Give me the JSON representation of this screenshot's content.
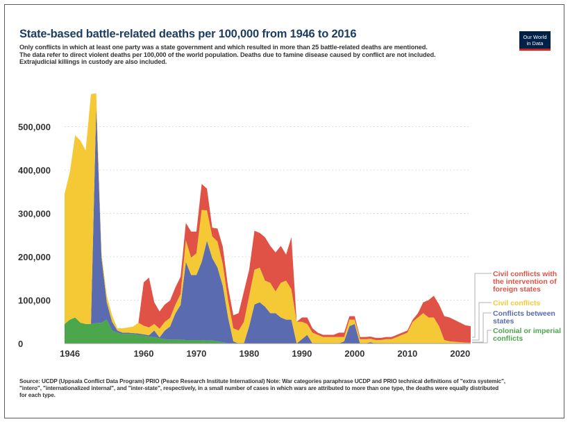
{
  "header": {
    "title": "State-based battle-related deaths per 100,000 from 1946 to 2016",
    "subtitle_lines": [
      "Only conflicts in which at least one party was a state government and which resulted in more than 25 battle-related deaths are mentioned.",
      "The data refer to direct violent deaths per 100,000 of the world population. Deaths due to famine disease caused by conflict are not included.",
      "Extrajudicial killings in custody are also included."
    ]
  },
  "logo": {
    "line1": "Our World",
    "line2": "in Data"
  },
  "colors": {
    "colonial": "#4ca64c",
    "interstate": "#5a6bb0",
    "civil": "#f4c935",
    "internationalized": "#e05246",
    "text": "#333333",
    "title": "#1d3d63",
    "grid": "#dddddd"
  },
  "chart_data": {
    "type": "area",
    "stacked": true,
    "title": "State-based battle-related deaths per 100,000 from 1946 to 2016",
    "xlabel": "",
    "ylabel": "",
    "xlim": [
      1945,
      2022
    ],
    "ylim": [
      0,
      600000
    ],
    "grid": true,
    "legend": "right",
    "x_ticks": [
      "1946",
      "1960",
      "1970",
      "1980",
      "1990",
      "2000",
      "2010",
      "2020"
    ],
    "y_ticks": [
      "0",
      "100,000",
      "200,000",
      "300,000",
      "400,000",
      "500,000"
    ],
    "x": [
      1945,
      1946,
      1947,
      1948,
      1949,
      1950,
      1951,
      1952,
      1953,
      1954,
      1955,
      1956,
      1957,
      1958,
      1959,
      1960,
      1961,
      1962,
      1963,
      1964,
      1965,
      1966,
      1967,
      1968,
      1969,
      1970,
      1971,
      1972,
      1973,
      1974,
      1975,
      1976,
      1977,
      1978,
      1979,
      1980,
      1981,
      1982,
      1983,
      1984,
      1985,
      1986,
      1987,
      1988,
      1989,
      1990,
      1991,
      1992,
      1993,
      1994,
      1995,
      1996,
      1997,
      1998,
      1999,
      2000,
      2001,
      2002,
      2003,
      2004,
      2005,
      2006,
      2007,
      2008,
      2009,
      2010,
      2011,
      2012,
      2013,
      2014,
      2015,
      2016,
      2017,
      2018,
      2019,
      2020,
      2021,
      2022
    ],
    "series": [
      {
        "name": "Colonial or imperial conflicts",
        "key": "colonial",
        "values": [
          45000,
          55000,
          60000,
          48000,
          45000,
          45000,
          47000,
          48000,
          55000,
          30000,
          25000,
          22000,
          22000,
          22000,
          20000,
          18000,
          16000,
          15000,
          12000,
          10000,
          9000,
          9000,
          9000,
          8000,
          8000,
          8000,
          8000,
          7000,
          7000,
          5000,
          3000,
          0,
          0,
          0,
          0,
          0,
          0,
          0,
          0,
          0,
          0,
          0,
          0,
          0,
          0,
          0,
          0,
          0,
          0,
          0,
          0,
          0,
          0,
          0,
          0,
          0,
          0,
          0,
          0,
          0,
          0,
          0,
          0,
          0,
          0,
          0,
          0,
          0,
          0,
          0,
          0,
          0,
          0,
          0,
          0,
          0,
          0,
          0
        ]
      },
      {
        "name": "Conflicts between states",
        "key": "interstate",
        "values": [
          0,
          0,
          0,
          0,
          0,
          0,
          500000,
          150000,
          40000,
          20000,
          5000,
          3000,
          3000,
          2000,
          3000,
          3000,
          3000,
          15000,
          2000,
          20000,
          30000,
          60000,
          80000,
          180000,
          150000,
          150000,
          180000,
          230000,
          190000,
          170000,
          130000,
          60000,
          5000,
          0,
          0,
          40000,
          90000,
          95000,
          85000,
          70000,
          70000,
          60000,
          55000,
          55000,
          0,
          10000,
          20000,
          0,
          0,
          0,
          0,
          0,
          0,
          5000,
          40000,
          45000,
          0,
          0,
          3000,
          0,
          0,
          0,
          0,
          0,
          0,
          0,
          0,
          0,
          0,
          0,
          0,
          0,
          0,
          0,
          0,
          0,
          0,
          0
        ]
      },
      {
        "name": "Civil conflicts",
        "key": "civil",
        "values": [
          300000,
          340000,
          420000,
          420000,
          400000,
          530000,
          30000,
          10000,
          15000,
          15000,
          5000,
          10000,
          12000,
          15000,
          25000,
          20000,
          18000,
          15000,
          20000,
          20000,
          20000,
          20000,
          25000,
          50000,
          40000,
          50000,
          120000,
          70000,
          50000,
          60000,
          50000,
          40000,
          30000,
          30000,
          50000,
          70000,
          80000,
          80000,
          60000,
          70000,
          50000,
          80000,
          90000,
          70000,
          50000,
          40000,
          25000,
          25000,
          20000,
          15000,
          15000,
          15000,
          15000,
          10000,
          15000,
          10000,
          10000,
          10000,
          8000,
          8000,
          8000,
          10000,
          10000,
          15000,
          20000,
          25000,
          50000,
          60000,
          70000,
          60000,
          60000,
          40000,
          8000,
          5000,
          4000,
          3000,
          2000,
          2000
        ]
      },
      {
        "name": "Civil conflicts with the intervention of foreign states",
        "key": "internationalized",
        "values": [
          0,
          0,
          0,
          0,
          0,
          0,
          0,
          0,
          0,
          0,
          0,
          0,
          0,
          0,
          0,
          100000,
          115000,
          50000,
          40000,
          40000,
          40000,
          40000,
          40000,
          40000,
          60000,
          50000,
          60000,
          50000,
          20000,
          30000,
          40000,
          30000,
          30000,
          40000,
          70000,
          60000,
          90000,
          80000,
          100000,
          85000,
          90000,
          85000,
          60000,
          120000,
          0,
          10000,
          15000,
          10000,
          5000,
          5000,
          5000,
          5000,
          10000,
          10000,
          8000,
          8000,
          5000,
          5000,
          5000,
          5000,
          5000,
          5000,
          5000,
          5000,
          5000,
          5000,
          5000,
          10000,
          25000,
          40000,
          50000,
          50000,
          55000,
          55000,
          50000,
          45000,
          40000,
          38000
        ]
      }
    ]
  },
  "legend": {
    "internationalized": [
      "Civil conflicts with",
      "the intervention of",
      "foreign states"
    ],
    "civil": [
      "Civil conflicts"
    ],
    "interstate": [
      "Conflicts between",
      "states"
    ],
    "colonial": [
      "Colonial or imperial",
      "conflicts"
    ]
  },
  "source": {
    "lines": [
      "Source: UCDP (Uppsala Conflict Data Program) PRIO (Peace Research Institute International) Note: War categories paraphrase UCDP and PRIO technical definitions of \"extra systemic\",",
      "\"intero\", \"internationalized internal\", and \"inter-state\", respectively, in a small number of cases in which wars are attributed to more than one type, the deaths were equally distributed",
      "for each type."
    ]
  }
}
